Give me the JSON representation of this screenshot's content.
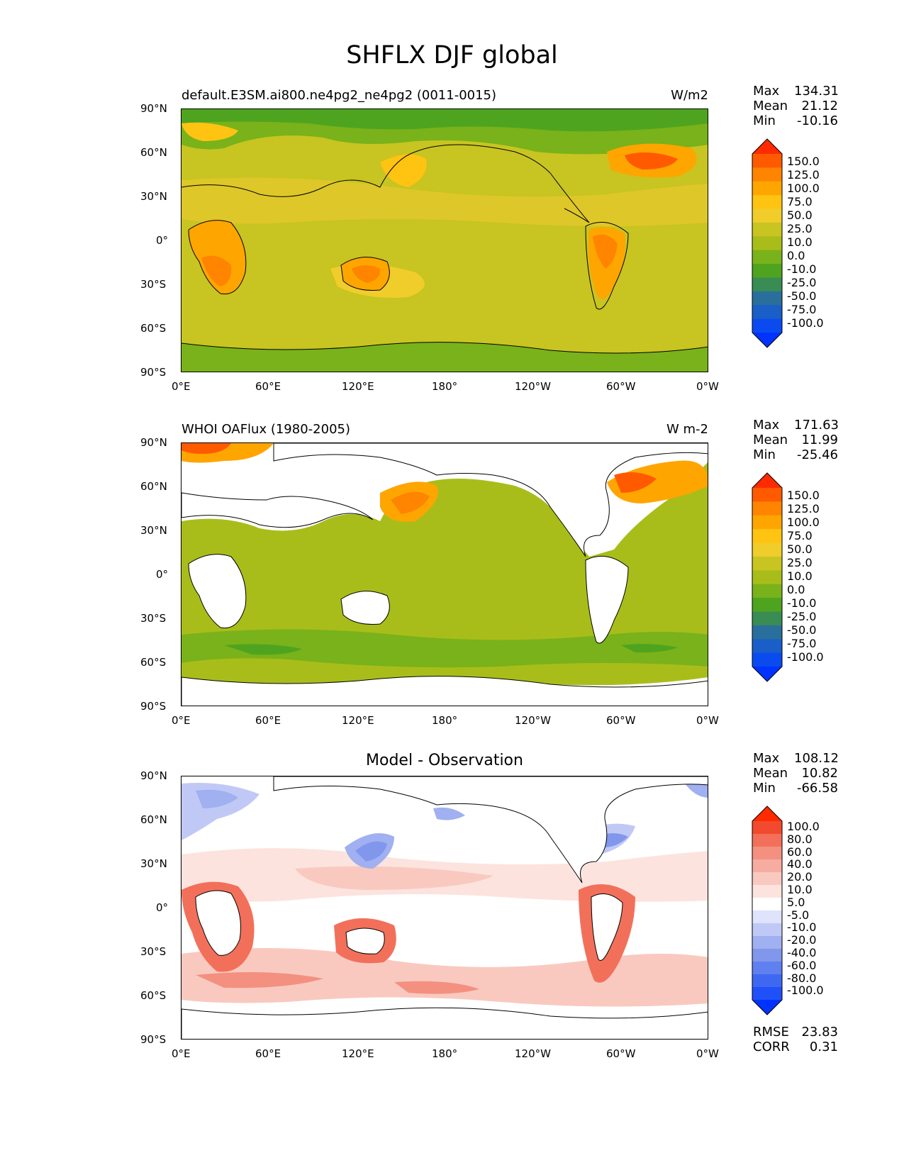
{
  "figure": {
    "title": "SHFLX DJF global"
  },
  "axes": {
    "lat_ticks": [
      "90°N",
      "60°N",
      "30°N",
      "0°",
      "30°S",
      "60°S",
      "90°S"
    ],
    "lon_ticks": [
      "0°E",
      "60°E",
      "120°E",
      "180°",
      "120°W",
      "60°W",
      "0°W"
    ]
  },
  "panels": [
    {
      "left_title": "default.E3SM.ai800.ne4pg2_ne4pg2 (0011-0015)",
      "right_title": "W/m2",
      "stats": {
        "max_label": "Max",
        "max": "134.31",
        "mean_label": "Mean",
        "mean": "21.12",
        "min_label": "Min",
        "min": "-10.16"
      },
      "colorbar_labels": [
        "150.0",
        "125.0",
        "100.0",
        "75.0",
        "50.0",
        "25.0",
        "10.0",
        "0.0",
        "-10.0",
        "-25.0",
        "-50.0",
        "-75.0",
        "-100.0"
      ],
      "colorbar_colors": [
        "#ff2a00",
        "#ff5a00",
        "#ff8400",
        "#ffa500",
        "#ffc312",
        "#f0cd2a",
        "#c8c421",
        "#a9bd1a",
        "#79b21a",
        "#4fa41f",
        "#3a8c55",
        "#2a6f9b",
        "#1a5fc8",
        "#0a4bf0",
        "#0033ff"
      ]
    },
    {
      "left_title": "WHOI OAFlux (1980-2005)",
      "right_title": "W m-2",
      "stats": {
        "max_label": "Max",
        "max": "171.63",
        "mean_label": "Mean",
        "mean": "11.99",
        "min_label": "Min",
        "min": "-25.46"
      },
      "colorbar_labels": [
        "150.0",
        "125.0",
        "100.0",
        "75.0",
        "50.0",
        "25.0",
        "10.0",
        "0.0",
        "-10.0",
        "-25.0",
        "-50.0",
        "-75.0",
        "-100.0"
      ],
      "colorbar_colors": [
        "#ff2a00",
        "#ff5a00",
        "#ff8400",
        "#ffa500",
        "#ffc312",
        "#f0cd2a",
        "#c8c421",
        "#a9bd1a",
        "#79b21a",
        "#4fa41f",
        "#3a8c55",
        "#2a6f9b",
        "#1a5fc8",
        "#0a4bf0",
        "#0033ff"
      ]
    },
    {
      "center_title": "Model - Observation",
      "stats": {
        "max_label": "Max",
        "max": "108.12",
        "mean_label": "Mean",
        "mean": "10.82",
        "min_label": "Min",
        "min": "-66.58"
      },
      "colorbar_labels": [
        "100.0",
        "80.0",
        "60.0",
        "40.0",
        "20.0",
        "10.0",
        "5.0",
        "-5.0",
        "-10.0",
        "-20.0",
        "-40.0",
        "-60.0",
        "-80.0",
        "-100.0"
      ],
      "colorbar_colors": [
        "#ff2a00",
        "#f24a2e",
        "#f2705a",
        "#f49080",
        "#f6aca0",
        "#f9c9c0",
        "#fce3de",
        "#ffffff",
        "#dfe3fb",
        "#c0c9f6",
        "#a0b0f0",
        "#8097ec",
        "#6080ef",
        "#3f68f2",
        "#2050f7",
        "#0033ff"
      ],
      "rmse_label": "RMSE",
      "rmse": "23.83",
      "corr_label": "CORR",
      "corr": "0.31"
    }
  ]
}
